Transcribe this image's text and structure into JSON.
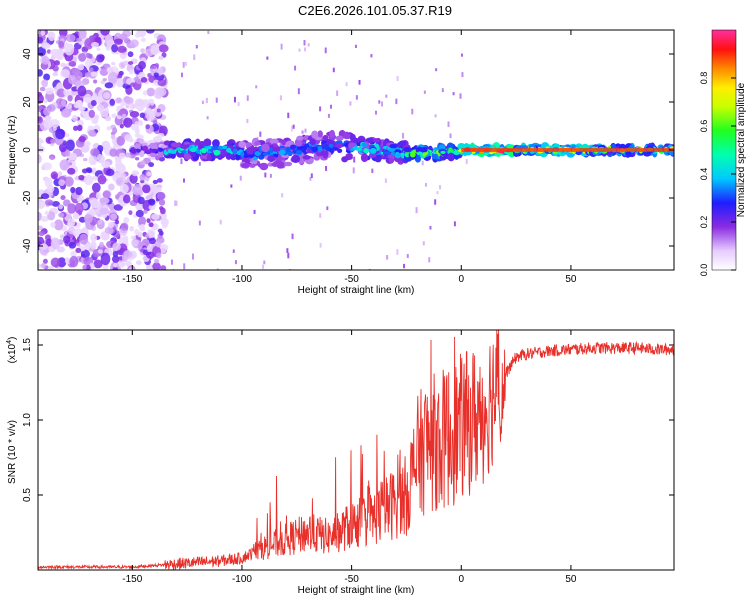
{
  "page_title": "C2E6.2026.101.05.37.R19",
  "colors": {
    "snr_line": "#e8302a",
    "axis": "#000000",
    "background": "#ffffff"
  },
  "chart_data": [
    {
      "type": "heatmap",
      "xlabel": "Height of straight line (km)",
      "ylabel": "Frequency (Hz)",
      "xlim": [
        -193,
        97
      ],
      "ylim": [
        -50,
        50
      ],
      "x_ticks": [
        -150,
        -100,
        -50,
        0,
        50
      ],
      "y_ticks": [
        -40,
        -20,
        0,
        20,
        40
      ],
      "noise_region_x": [
        -193,
        -135
      ],
      "signal_segments": [
        {
          "x0": -150,
          "x1": -135,
          "amp": 0.25,
          "width_hz": 3
        },
        {
          "x0": -135,
          "x1": -100,
          "amp": 0.45,
          "width_hz": 4
        },
        {
          "x0": -100,
          "x1": -50,
          "amp": 0.35,
          "width_hz": 7
        },
        {
          "x0": -50,
          "x1": -25,
          "amp": 0.45,
          "width_hz": 5
        },
        {
          "x0": -25,
          "x1": 0,
          "amp": 0.6,
          "width_hz": 3
        },
        {
          "x0": 0,
          "x1": 25,
          "amp": 0.95,
          "width_hz": 2
        },
        {
          "x0": 25,
          "x1": 60,
          "amp": 0.75,
          "width_hz": 2
        },
        {
          "x0": 60,
          "x1": 97,
          "amp": 0.65,
          "width_hz": 2
        }
      ],
      "colorbar": {
        "label": "Normalized spectral amplitude",
        "range": [
          0,
          1
        ],
        "ticks": [
          "0.0",
          "0.2",
          "0.4",
          "0.6",
          "0.8"
        ],
        "tick_values": [
          0.0,
          0.2,
          0.4,
          0.6,
          0.8
        ]
      }
    },
    {
      "type": "line",
      "xlabel": "Height of straight line (km)",
      "ylabel": "SNR (10 * v/v)",
      "scale_label": "(x10",
      "scale_exp": "4",
      "scale_close": ")",
      "xlim": [
        -193,
        97
      ],
      "ylim": [
        0,
        1.6
      ],
      "x_ticks": [
        -150,
        -100,
        -50,
        0,
        50
      ],
      "y_ticks": [
        "0.5",
        "1.0",
        "1.5"
      ],
      "y_tick_values": [
        0.5,
        1.0,
        1.5
      ],
      "series": [
        {
          "name": "SNR",
          "x": [
            -193,
            -150,
            -130,
            -110,
            -100,
            -90,
            -80,
            -70,
            -60,
            -50,
            -40,
            -30,
            -25,
            -20,
            -15,
            -10,
            -5,
            0,
            5,
            10,
            15,
            20,
            25,
            30,
            40,
            50,
            60,
            70,
            80,
            90,
            97
          ],
          "values": [
            0.02,
            0.02,
            0.04,
            0.06,
            0.08,
            0.15,
            0.2,
            0.25,
            0.22,
            0.3,
            0.35,
            0.45,
            0.5,
            0.75,
            0.85,
            0.85,
            0.9,
            0.95,
            1.0,
            1.05,
            1.2,
            1.3,
            1.42,
            1.44,
            1.46,
            1.47,
            1.48,
            1.48,
            1.48,
            1.47,
            1.47
          ]
        }
      ]
    }
  ]
}
